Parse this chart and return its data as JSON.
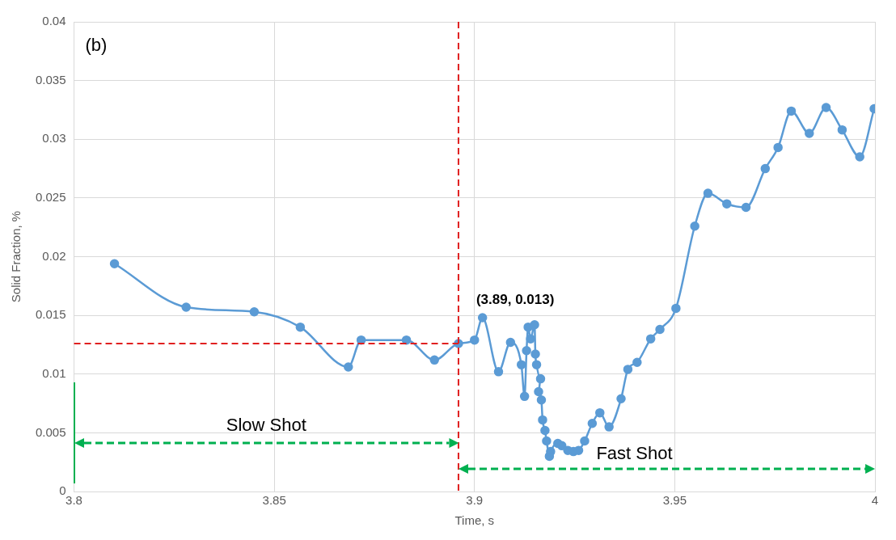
{
  "chart_data": {
    "type": "line",
    "xlabel": "Time, s",
    "ylabel": "Solid Fraction, %",
    "xlim": [
      3.8,
      4
    ],
    "xticks": [
      3.8,
      3.85,
      3.9,
      3.95,
      4
    ],
    "ylim": [
      0,
      0.04
    ],
    "yticks": [
      0,
      0.005,
      0.01,
      0.015,
      0.02,
      0.025,
      0.03,
      0.035,
      0.04
    ],
    "grid": true,
    "legend": false,
    "marker": "circle",
    "line_style": "solid",
    "series": [
      {
        "color": "#5b9bd5",
        "x": [
          3.8101,
          3.828,
          3.845,
          3.8565,
          3.8685,
          3.8717,
          3.883,
          3.89,
          3.896,
          3.9,
          3.902,
          3.906,
          3.909,
          3.9117,
          3.9125,
          3.913,
          3.9134,
          3.914,
          3.915,
          3.9152,
          3.9155,
          3.9165,
          3.916,
          3.9167,
          3.917,
          3.9176,
          3.918,
          3.9187,
          3.919,
          3.9208,
          3.9218,
          3.9233,
          3.9247,
          3.926,
          3.9275,
          3.9294,
          3.9313,
          3.9336,
          3.9366,
          3.9383,
          3.9406,
          3.944,
          3.9463,
          3.9503,
          3.955,
          3.9583,
          3.963,
          3.9678,
          3.9726,
          3.9758,
          3.9791,
          3.9836,
          3.9878,
          3.9918,
          3.9962,
          3.9998
        ],
        "values": [
          0.0194,
          0.0157,
          0.0153,
          0.014,
          0.0106,
          0.0129,
          0.0129,
          0.0112,
          0.0126,
          0.0129,
          0.0148,
          0.0102,
          0.0127,
          0.0108,
          0.0081,
          0.012,
          0.014,
          0.013,
          0.0142,
          0.0117,
          0.0108,
          0.0096,
          0.0085,
          0.0078,
          0.0061,
          0.0052,
          0.0043,
          0.003,
          0.0034,
          0.0041,
          0.0039,
          0.0035,
          0.0034,
          0.0035,
          0.0043,
          0.0058,
          0.0067,
          0.0055,
          0.0079,
          0.0104,
          0.011,
          0.013,
          0.0138,
          0.0156,
          0.0226,
          0.0254,
          0.0245,
          0.0242,
          0.0275,
          0.0293,
          0.0324,
          0.0305,
          0.0327,
          0.0308,
          0.0285,
          0.0326
        ]
      }
    ],
    "ref_lines": [
      {
        "axis": "x",
        "value": 3.896,
        "color": "#e02020",
        "line_style": "dashed"
      },
      {
        "axis": "y",
        "value": 0.0126,
        "color": "#e02020",
        "line_style": "dashed"
      }
    ],
    "annotations": [
      "(b)",
      "(3.89, 0.013)",
      "Slow Shot",
      "Fast Shot"
    ]
  }
}
